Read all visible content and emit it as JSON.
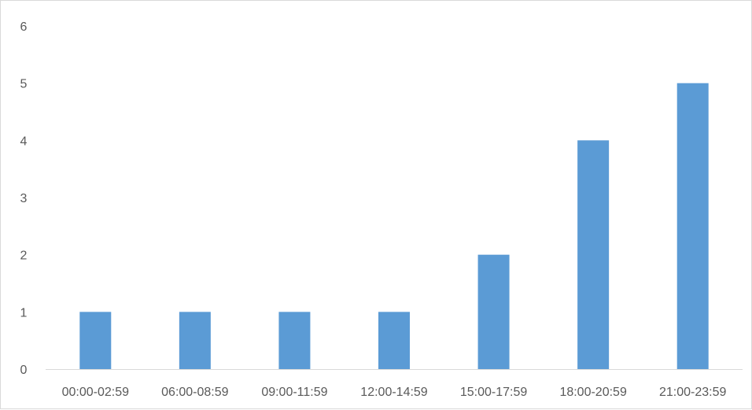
{
  "chart_data": {
    "type": "bar",
    "categories": [
      "00:00-02:59",
      "06:00-08:59",
      "09:00-11:59",
      "12:00-14:59",
      "15:00-17:59",
      "18:00-20:59",
      "21:00-23:59"
    ],
    "values": [
      1,
      1,
      1,
      1,
      2,
      4,
      5
    ],
    "ylim": [
      0,
      6
    ],
    "yticks": [
      0,
      1,
      2,
      3,
      4,
      5,
      6
    ],
    "grid": false,
    "legend": "none",
    "bar_color": "#5b9bd5",
    "axis_color": "#d9d9d9",
    "text_color": "#595959"
  }
}
